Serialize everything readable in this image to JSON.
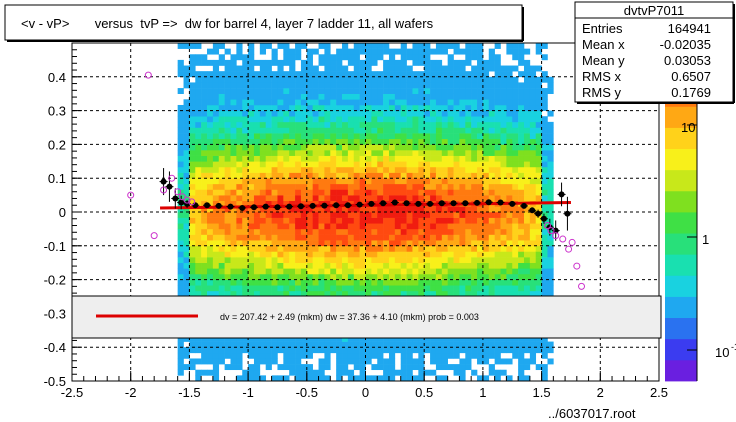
{
  "chart_data": {
    "type": "heatmap",
    "title": "<v - vP>       versus  tvP =>  dw for barrel 4, layer 7 ladder 11, all wafers",
    "xlim": [
      -2.5,
      2.5
    ],
    "ylim": [
      -0.5,
      0.5
    ],
    "x_ticks": [
      "-2.5",
      "-2",
      "-1.5",
      "-1",
      "-0.5",
      "0",
      "0.5",
      "1",
      "1.5",
      "2",
      "2.5"
    ],
    "y_ticks": [
      "-0.5",
      "-0.4",
      "-0.3",
      "-0.2",
      "-0.1",
      "0",
      "0.1",
      "0.2",
      "0.3",
      "0.4"
    ],
    "grid": true,
    "stats": {
      "name": "dvtvP7011",
      "rows": [
        {
          "label": "Entries",
          "value": "164941"
        },
        {
          "label": "Mean x",
          "value": "-0.02035"
        },
        {
          "label": "Mean y",
          "value": "0.03053"
        },
        {
          "label": "RMS x",
          "value": "0.6507"
        },
        {
          "label": "RMS y",
          "value": "0.1769"
        }
      ]
    },
    "colorbar": {
      "scale": "log",
      "tick_labels": [
        "10",
        "1",
        "10"
      ],
      "minor_exponent": "-1",
      "colors": [
        "#6a1fe0",
        "#3b3cf0",
        "#2a72f0",
        "#1fa8f0",
        "#19d2e0",
        "#19e0b0",
        "#28e07a",
        "#3fe045",
        "#7fe01f",
        "#c8e81a",
        "#f8f01a",
        "#ffd21a",
        "#ffa814",
        "#ff7a10",
        "#ff4a10",
        "#f01c10"
      ]
    },
    "fit_legend": {
      "text": "dv =  207.42 +   2.49 (mkm) dw =   37.36 +   4.10 (mkm) prob = 0.003",
      "line_color": "#dd0000"
    },
    "fit_line": {
      "x": [
        -1.75,
        1.75
      ],
      "y": [
        0.012,
        0.028
      ],
      "color": "#dd0000"
    },
    "profile_points": {
      "x": [
        -1.72,
        -1.67,
        -1.62,
        -1.57,
        -1.52,
        -1.45,
        -1.35,
        -1.25,
        -1.15,
        -1.05,
        -0.95,
        -0.85,
        -0.75,
        -0.65,
        -0.55,
        -0.45,
        -0.35,
        -0.25,
        -0.15,
        -0.05,
        0.05,
        0.15,
        0.25,
        0.35,
        0.45,
        0.55,
        0.65,
        0.75,
        0.85,
        0.95,
        1.05,
        1.15,
        1.25,
        1.35,
        1.42,
        1.47,
        1.52,
        1.57,
        1.62,
        1.67,
        1.72
      ],
      "y": [
        0.09,
        0.075,
        0.04,
        0.028,
        0.024,
        0.02,
        0.02,
        0.018,
        0.016,
        0.012,
        0.014,
        0.016,
        0.014,
        0.016,
        0.017,
        0.018,
        0.019,
        0.02,
        0.02,
        0.022,
        0.024,
        0.026,
        0.028,
        0.026,
        0.024,
        0.024,
        0.026,
        0.026,
        0.026,
        0.027,
        0.029,
        0.028,
        0.024,
        0.018,
        0.005,
        -0.005,
        -0.02,
        -0.045,
        -0.055,
        0.052,
        -0.005
      ],
      "err": [
        0.04,
        0.045,
        0.03,
        0.02,
        0.012,
        0.006,
        0.005,
        0.004,
        0.004,
        0.004,
        0.003,
        0.003,
        0.003,
        0.003,
        0.003,
        0.003,
        0.003,
        0.003,
        0.003,
        0.003,
        0.003,
        0.003,
        0.003,
        0.003,
        0.003,
        0.003,
        0.003,
        0.003,
        0.003,
        0.004,
        0.004,
        0.004,
        0.005,
        0.006,
        0.008,
        0.012,
        0.015,
        0.025,
        0.03,
        0.035,
        0.05
      ]
    },
    "open_points": {
      "x": [
        -1.85,
        -2.0,
        -1.8,
        -1.72,
        -1.65,
        -1.6,
        -1.56,
        -1.52,
        -1.48,
        1.55,
        1.58,
        1.62,
        1.68,
        1.73,
        1.76,
        1.8,
        1.84
      ],
      "y": [
        0.405,
        0.05,
        -0.07,
        0.065,
        0.1,
        0.06,
        0.045,
        0.035,
        0.03,
        -0.04,
        -0.055,
        -0.07,
        -0.08,
        -0.11,
        -0.09,
        -0.16,
        -0.22
      ]
    },
    "footer": "../6037017.root"
  }
}
